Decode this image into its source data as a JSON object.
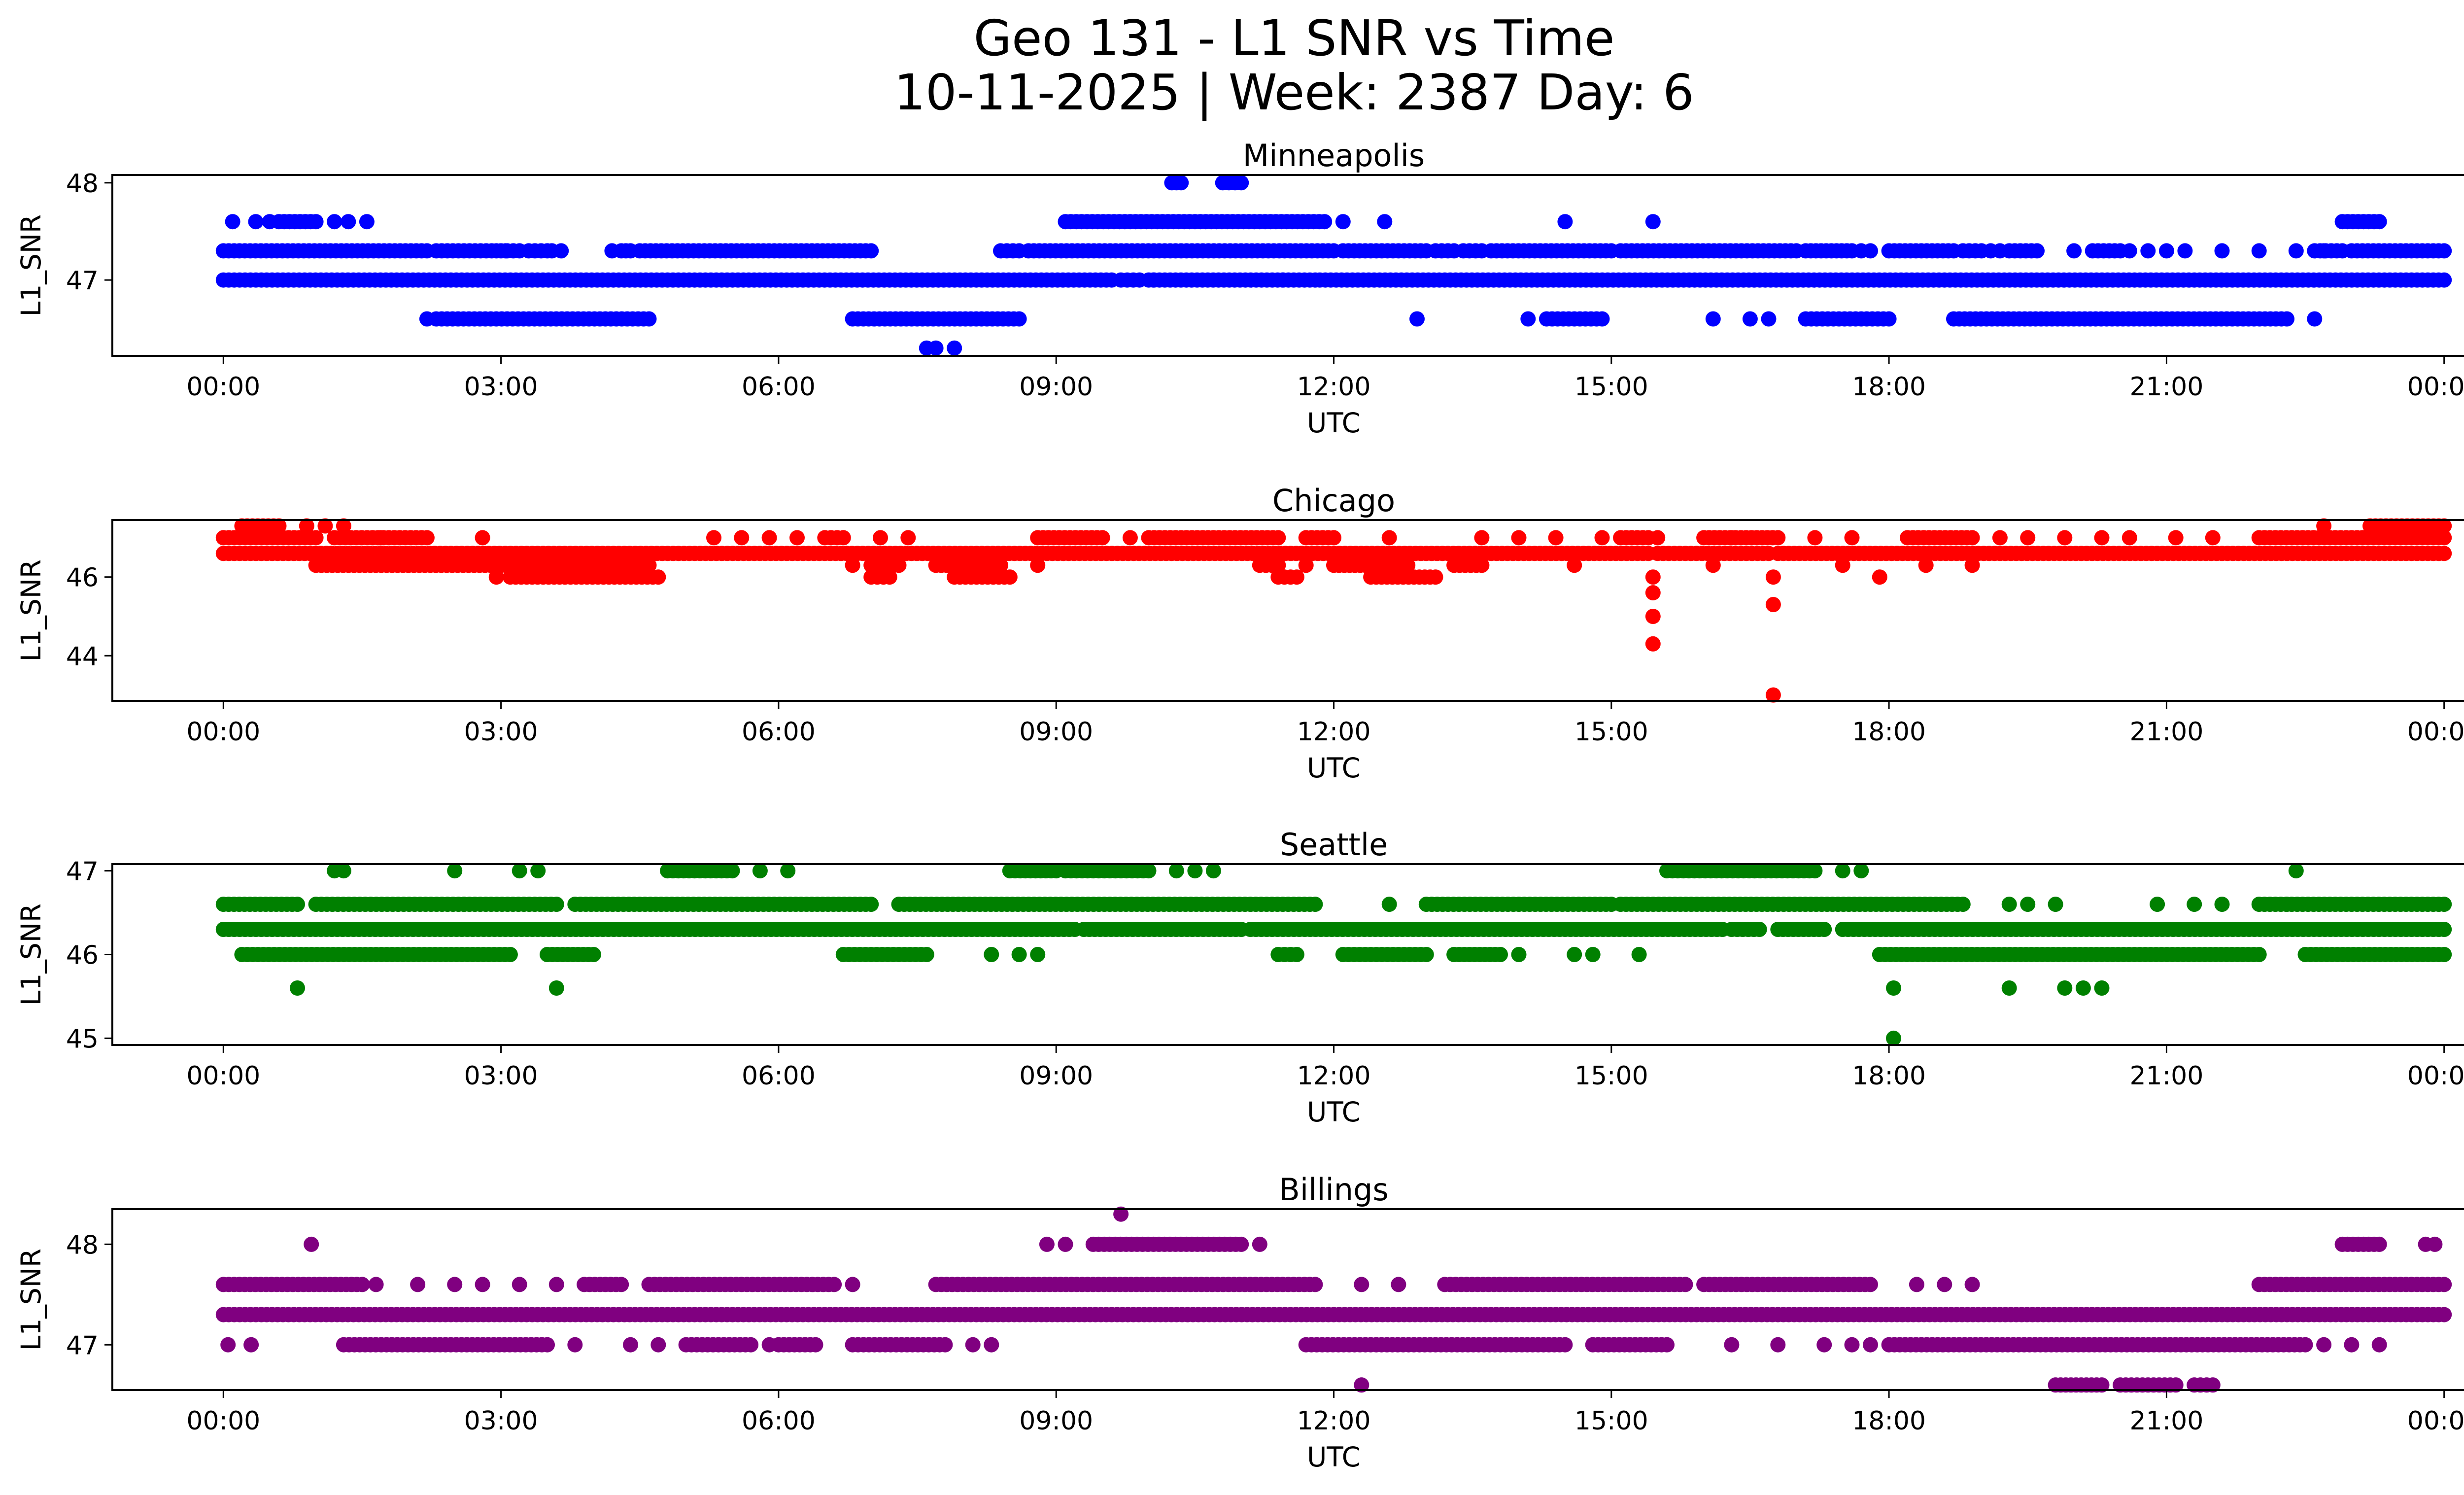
{
  "figure": {
    "title_line1": "Geo 131 - L1 SNR vs Time",
    "title_line2": "10-11-2025 | Week: 2387 Day: 6"
  },
  "chart_data": [
    {
      "type": "scatter",
      "title": "Minneapolis",
      "xlabel": "UTC",
      "ylabel": "L1_SNR",
      "color": "#0000ff",
      "x_ticks": [
        "00:00",
        "03:00",
        "06:00",
        "09:00",
        "12:00",
        "15:00",
        "18:00",
        "21:00",
        "00:00"
      ],
      "xlim_hours": [
        -1.2,
        25.2
      ],
      "y_ticks": [
        47,
        48
      ],
      "ylim": [
        46.22,
        48.08
      ],
      "series": [
        {
          "name": "Minneapolis L1_SNR",
          "levels": [
            {
              "y": 47.0,
              "ranges": [
                [
                  0.0,
                  9.6
                ],
                [
                  9.7,
                  9.9
                ],
                [
                  10.0,
                  11.8
                ],
                [
                  11.85,
                  24.0
                ]
              ],
              "dots": [
                10.05,
                11.45
              ]
            },
            {
              "y": 47.3,
              "ranges": [
                [
                  0.0,
                  2.2
                ],
                [
                  2.3,
                  2.9
                ],
                [
                  3.0,
                  3.2
                ],
                [
                  3.3,
                  3.5
                ],
                [
                  4.3,
                  4.4
                ],
                [
                  4.5,
                  7.0
                ],
                [
                  8.4,
                  8.6
                ],
                [
                  8.7,
                  12.0
                ],
                [
                  12.1,
                  13.0
                ],
                [
                  13.1,
                  13.3
                ],
                [
                  13.4,
                  13.6
                ],
                [
                  13.7,
                  15.0
                ],
                [
                  15.1,
                  17.0
                ],
                [
                  17.1,
                  17.6
                ],
                [
                  18.0,
                  18.7
                ],
                [
                  18.8,
                  19.0
                ],
                [
                  19.3,
                  19.6
                ],
                [
                  20.2,
                  20.5
                ],
                [
                  22.6,
                  22.9
                ],
                [
                  23.0,
                  24.0
                ]
              ],
              "dots": [
                2.95,
                3.05,
                3.55,
                3.65,
                4.2,
                17.7,
                17.8,
                19.1,
                19.2,
                20.0,
                20.6,
                20.8,
                21.0,
                21.2,
                21.6,
                22.0,
                22.4,
                22.7
              ]
            },
            {
              "y": 47.6,
              "ranges": [
                [
                  0.6,
                  1.0
                ],
                [
                  9.1,
                  11.9
                ],
                [
                  22.9,
                  23.3
                ]
              ],
              "dots": [
                0.1,
                0.35,
                0.5,
                1.2,
                1.35,
                1.55,
                12.1,
                12.55,
                14.5,
                15.45
              ]
            },
            {
              "y": 48.0,
              "ranges": [
                [
                  10.25,
                  10.35
                ],
                [
                  10.8,
                  11.0
                ]
              ],
              "dots": []
            },
            {
              "y": 46.6,
              "ranges": [
                [
                  2.3,
                  4.6
                ],
                [
                  6.8,
                  8.6
                ],
                [
                  14.3,
                  14.9
                ],
                [
                  17.1,
                  18.0
                ],
                [
                  18.7,
                  22.3
                ]
              ],
              "dots": [
                2.2,
                12.9,
                14.1,
                16.1,
                16.5,
                16.7,
                22.6
              ]
            },
            {
              "y": 46.3,
              "ranges": [],
              "dots": [
                7.6,
                7.7,
                7.9
              ]
            }
          ]
        }
      ]
    },
    {
      "type": "scatter",
      "title": "Chicago",
      "xlabel": "UTC",
      "ylabel": "L1_SNR",
      "color": "#ff0000",
      "x_ticks": [
        "00:00",
        "03:00",
        "06:00",
        "09:00",
        "12:00",
        "15:00",
        "18:00",
        "21:00",
        "00:00"
      ],
      "xlim_hours": [
        -1.2,
        25.2
      ],
      "y_ticks": [
        44,
        46
      ],
      "ylim": [
        42.85,
        47.45
      ],
      "series": [
        {
          "name": "Chicago L1_SNR",
          "levels": [
            {
              "y": 46.6,
              "ranges": [
                [
                  0.0,
                  15.4
                ],
                [
                  15.5,
                  16.7
                ],
                [
                  16.8,
                  24.0
                ]
              ],
              "dots": []
            },
            {
              "y": 47.0,
              "ranges": [
                [
                  0.0,
                  1.0
                ],
                [
                  1.2,
                  2.2
                ],
                [
                  6.5,
                  6.7
                ],
                [
                  8.8,
                  9.5
                ],
                [
                  10.0,
                  11.4
                ],
                [
                  11.7,
                  12.0
                ],
                [
                  15.1,
                  15.4
                ],
                [
                  16.0,
                  16.8
                ],
                [
                  18.2,
                  18.9
                ],
                [
                  22.0,
                  24.0
                ]
              ],
              "dots": [
                1.7,
                2.8,
                5.3,
                5.6,
                5.9,
                6.2,
                7.1,
                7.4,
                9.8,
                12.6,
                13.6,
                14.0,
                14.4,
                14.9,
                15.5,
                16.3,
                17.2,
                17.6,
                19.2,
                19.5,
                19.9,
                20.3,
                20.6,
                21.1,
                21.5
              ]
            },
            {
              "y": 47.3,
              "ranges": [
                [
                  0.2,
                  0.6
                ],
                [
                  23.2,
                  24.0
                ]
              ],
              "dots": [
                0.9,
                1.1,
                1.3,
                22.7
              ]
            },
            {
              "y": 46.3,
              "ranges": [
                [
                  1.0,
                  2.0
                ],
                [
                  2.0,
                  4.6
                ],
                [
                  7.0,
                  7.3
                ],
                [
                  7.7,
                  8.4
                ],
                [
                  11.2,
                  11.4
                ],
                [
                  12.0,
                  12.8
                ],
                [
                  13.3,
                  13.6
                ]
              ],
              "dots": [
                6.8,
                8.8,
                11.7,
                14.6,
                16.1,
                17.5,
                18.4,
                18.9
              ]
            },
            {
              "y": 46.0,
              "ranges": [
                [
                  3.1,
                  4.7
                ],
                [
                  7.0,
                  7.2
                ],
                [
                  7.9,
                  8.5
                ],
                [
                  11.4,
                  11.6
                ],
                [
                  12.4,
                  13.1
                ]
              ],
              "dots": [
                2.95,
                15.45,
                16.75,
                17.9
              ]
            },
            {
              "y": 45.6,
              "ranges": [],
              "dots": [
                15.45
              ]
            },
            {
              "y": 45.3,
              "ranges": [],
              "dots": [
                16.75
              ]
            },
            {
              "y": 45.0,
              "ranges": [],
              "dots": [
                15.45
              ]
            },
            {
              "y": 44.3,
              "ranges": [],
              "dots": [
                15.45
              ]
            },
            {
              "y": 43.0,
              "ranges": [],
              "dots": [
                16.75
              ]
            }
          ]
        }
      ]
    },
    {
      "type": "scatter",
      "title": "Seattle",
      "xlabel": "UTC",
      "ylabel": "L1_SNR",
      "color": "#008000",
      "x_ticks": [
        "00:00",
        "03:00",
        "06:00",
        "09:00",
        "12:00",
        "15:00",
        "18:00",
        "21:00",
        "00:00"
      ],
      "xlim_hours": [
        -1.2,
        25.2
      ],
      "y_ticks": [
        45,
        46,
        47
      ],
      "ylim": [
        44.92,
        47.08
      ],
      "series": [
        {
          "name": "Seattle L1_SNR",
          "levels": [
            {
              "y": 46.3,
              "ranges": [
                [
                  0.0,
                  9.2
                ],
                [
                  9.3,
                  11.0
                ],
                [
                  11.1,
                  16.2
                ],
                [
                  16.3,
                  16.6
                ],
                [
                  16.8,
                  17.3
                ],
                [
                  17.5,
                  24.0
                ]
              ],
              "dots": []
            },
            {
              "y": 46.6,
              "ranges": [
                [
                  0.0,
                  0.8
                ],
                [
                  1.0,
                  2.6
                ],
                [
                  2.6,
                  3.6
                ],
                [
                  3.8,
                  7.0
                ],
                [
                  7.3,
                  11.8
                ],
                [
                  13.0,
                  15.0
                ],
                [
                  15.1,
                  18.8
                ],
                [
                  22.0,
                  24.0
                ]
              ],
              "dots": [
                12.6,
                19.3,
                19.5,
                19.8,
                20.9,
                21.3,
                21.6,
                22.3
              ]
            },
            {
              "y": 46.0,
              "ranges": [
                [
                  0.2,
                  3.1
                ],
                [
                  3.5,
                  4.0
                ],
                [
                  6.7,
                  7.6
                ],
                [
                  11.4,
                  11.6
                ],
                [
                  12.1,
                  13.0
                ],
                [
                  13.3,
                  13.8
                ],
                [
                  17.9,
                  22.0
                ],
                [
                  22.5,
                  24.0
                ]
              ],
              "dots": [
                8.3,
                8.6,
                8.8,
                14.0,
                14.6,
                14.8,
                15.3
              ]
            },
            {
              "y": 47.0,
              "ranges": [
                [
                  4.8,
                  5.5
                ],
                [
                  8.5,
                  9.0
                ],
                [
                  9.1,
                  10.0
                ],
                [
                  15.6,
                  17.2
                ]
              ],
              "dots": [
                1.2,
                1.3,
                2.5,
                3.2,
                3.4,
                5.8,
                6.1,
                10.3,
                10.5,
                10.7,
                17.5,
                17.7,
                22.4
              ]
            },
            {
              "y": 45.6,
              "ranges": [],
              "dots": [
                0.8,
                3.6,
                18.05,
                19.3,
                19.9,
                20.1,
                20.3
              ]
            },
            {
              "y": 45.0,
              "ranges": [],
              "dots": [
                18.05
              ]
            }
          ]
        }
      ]
    },
    {
      "type": "scatter",
      "title": "Billings",
      "xlabel": "UTC",
      "ylabel": "L1_SNR",
      "color": "#800080",
      "x_ticks": [
        "00:00",
        "03:00",
        "06:00",
        "09:00",
        "12:00",
        "15:00",
        "18:00",
        "21:00",
        "00:00"
      ],
      "xlim_hours": [
        -1.2,
        25.2
      ],
      "y_ticks": [
        47,
        48
      ],
      "ylim": [
        46.55,
        48.35
      ],
      "series": [
        {
          "name": "Billings L1_SNR",
          "levels": [
            {
              "y": 47.3,
              "ranges": [
                [
                  0.0,
                  24.0
                ]
              ],
              "dots": []
            },
            {
              "y": 47.6,
              "ranges": [
                [
                  0.0,
                  1.5
                ],
                [
                  3.9,
                  4.3
                ],
                [
                  4.6,
                  6.6
                ],
                [
                  7.7,
                  11.8
                ],
                [
                  13.2,
                  15.8
                ],
                [
                  16.0,
                  17.8
                ],
                [
                  22.0,
                  24.0
                ]
              ],
              "dots": [
                1.65,
                2.1,
                2.5,
                2.8,
                3.2,
                3.6,
                6.8,
                12.3,
                12.7,
                18.3,
                18.6,
                18.9
              ]
            },
            {
              "y": 47.0,
              "ranges": [
                [
                  1.3,
                  3.5
                ],
                [
                  5.0,
                  5.7
                ],
                [
                  6.0,
                  6.4
                ],
                [
                  6.8,
                  7.8
                ],
                [
                  11.7,
                  14.5
                ],
                [
                  14.8,
                  15.6
                ],
                [
                  18.0,
                  22.5
                ]
              ],
              "dots": [
                0.05,
                0.3,
                3.8,
                4.4,
                4.7,
                5.9,
                8.1,
                8.3,
                16.3,
                16.8,
                17.3,
                17.6,
                17.8,
                22.7,
                23.0,
                23.3
              ]
            },
            {
              "y": 48.0,
              "ranges": [
                [
                  9.4,
                  11.0
                ],
                [
                  22.9,
                  23.3
                ]
              ],
              "dots": [
                0.95,
                8.9,
                9.1,
                11.2,
                23.8,
                23.9
              ]
            },
            {
              "y": 48.3,
              "ranges": [],
              "dots": [
                9.7
              ]
            },
            {
              "y": 46.6,
              "ranges": [
                [
                  19.8,
                  20.3
                ],
                [
                  20.5,
                  21.1
                ],
                [
                  21.3,
                  21.5
                ]
              ],
              "dots": [
                12.3
              ]
            }
          ]
        }
      ]
    }
  ]
}
